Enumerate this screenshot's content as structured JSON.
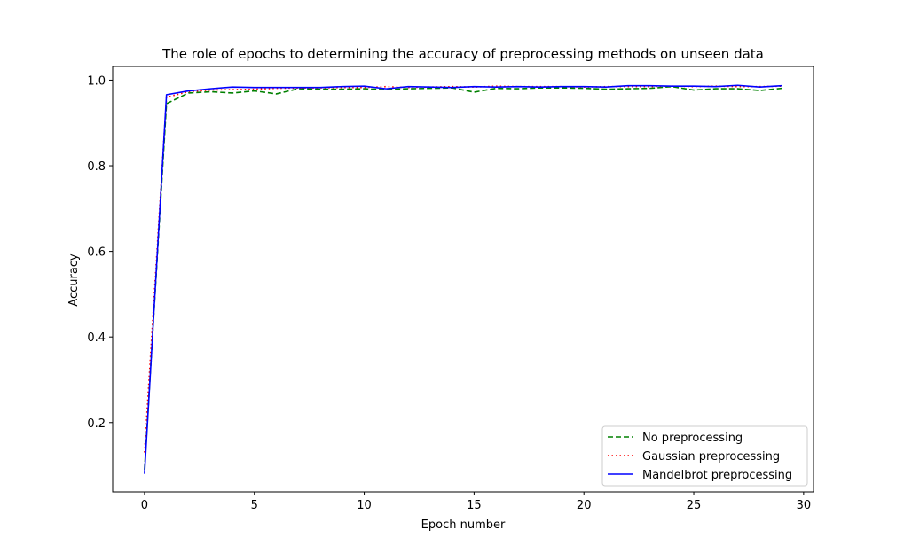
{
  "chart_data": {
    "type": "line",
    "title": "The role of epochs to determining the accuracy of preprocessing methods on unseen data",
    "xlabel": "Epoch number",
    "ylabel": "Accuracy",
    "xlim": [
      -1.45,
      30.45
    ],
    "ylim": [
      0.038,
      1.032
    ],
    "xticks": [
      0,
      5,
      10,
      15,
      20,
      25,
      30
    ],
    "yticks": [
      0.2,
      0.4,
      0.6,
      0.8,
      1.0
    ],
    "grid": false,
    "legend_position": "lower-right",
    "x": [
      0,
      1,
      2,
      3,
      4,
      5,
      6,
      7,
      8,
      9,
      10,
      11,
      12,
      13,
      14,
      15,
      16,
      17,
      18,
      19,
      20,
      21,
      22,
      23,
      24,
      25,
      26,
      27,
      28,
      29
    ],
    "series": [
      {
        "name": "No preprocessing",
        "color": "#008000",
        "style": "dashed",
        "values": [
          0.09,
          0.945,
          0.97,
          0.973,
          0.97,
          0.975,
          0.968,
          0.98,
          0.979,
          0.979,
          0.98,
          0.978,
          0.98,
          0.981,
          0.982,
          0.972,
          0.981,
          0.98,
          0.982,
          0.982,
          0.981,
          0.979,
          0.98,
          0.981,
          0.985,
          0.977,
          0.98,
          0.98,
          0.976,
          0.981
        ]
      },
      {
        "name": "Gaussian preprocessing",
        "color": "#ff0000",
        "style": "dotted",
        "values": [
          0.13,
          0.96,
          0.973,
          0.977,
          0.978,
          0.979,
          0.981,
          0.982,
          0.982,
          0.983,
          0.983,
          0.985,
          0.983,
          0.984,
          0.985,
          0.984,
          0.986,
          0.985,
          0.985,
          0.985,
          0.984,
          0.985,
          0.985,
          0.985,
          0.986,
          0.985,
          0.986,
          0.985,
          0.985,
          0.986
        ]
      },
      {
        "name": "Mandelbrot preprocessing",
        "color": "#0000ff",
        "style": "solid",
        "values": [
          0.08,
          0.966,
          0.975,
          0.98,
          0.984,
          0.983,
          0.983,
          0.983,
          0.983,
          0.985,
          0.986,
          0.98,
          0.985,
          0.984,
          0.983,
          0.985,
          0.984,
          0.985,
          0.984,
          0.985,
          0.985,
          0.984,
          0.987,
          0.987,
          0.986,
          0.986,
          0.985,
          0.988,
          0.984,
          0.987
        ]
      }
    ]
  }
}
